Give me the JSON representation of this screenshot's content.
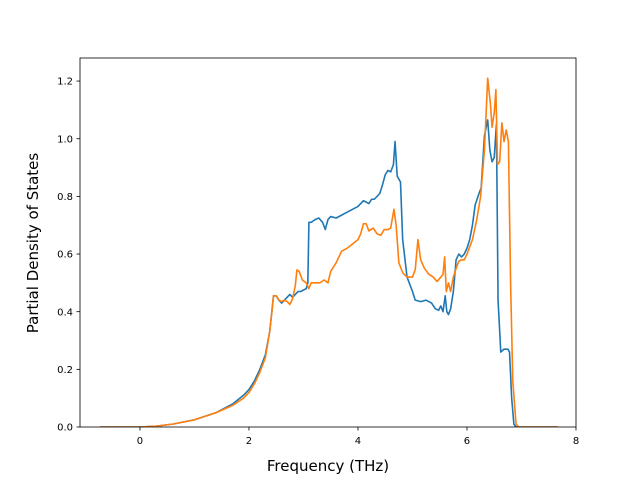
{
  "chart_data": {
    "type": "line",
    "title": "",
    "xlabel": "Frequency (THz)",
    "ylabel": "Partial Density of States",
    "xlim": [
      -1.1,
      8.0
    ],
    "ylim": [
      0.0,
      1.28
    ],
    "xticks": [
      0,
      2,
      4,
      6,
      8
    ],
    "yticks": [
      0.0,
      0.2,
      0.4,
      0.6,
      0.8,
      1.0,
      1.2
    ],
    "xtick_labels": [
      "0",
      "2",
      "4",
      "6",
      "8"
    ],
    "ytick_labels": [
      "0.0",
      "0.2",
      "0.4",
      "0.6",
      "0.8",
      "1.0",
      "1.2"
    ],
    "grid": false,
    "legend": false,
    "series": [
      {
        "color": "#1f77b4",
        "points": [
          [
            -0.72,
            0.0
          ],
          [
            0.0,
            0.0
          ],
          [
            0.3,
            0.003
          ],
          [
            0.6,
            0.01
          ],
          [
            1.0,
            0.025
          ],
          [
            1.4,
            0.05
          ],
          [
            1.7,
            0.08
          ],
          [
            1.9,
            0.11
          ],
          [
            2.0,
            0.13
          ],
          [
            2.1,
            0.16
          ],
          [
            2.2,
            0.2
          ],
          [
            2.3,
            0.25
          ],
          [
            2.38,
            0.33
          ],
          [
            2.42,
            0.4
          ],
          [
            2.45,
            0.455
          ],
          [
            2.5,
            0.455
          ],
          [
            2.55,
            0.44
          ],
          [
            2.6,
            0.43
          ],
          [
            2.65,
            0.44
          ],
          [
            2.7,
            0.45
          ],
          [
            2.75,
            0.46
          ],
          [
            2.8,
            0.45
          ],
          [
            2.85,
            0.46
          ],
          [
            2.9,
            0.47
          ],
          [
            2.95,
            0.47
          ],
          [
            3.0,
            0.475
          ],
          [
            3.05,
            0.48
          ],
          [
            3.08,
            0.5
          ],
          [
            3.1,
            0.71
          ],
          [
            3.14,
            0.71
          ],
          [
            3.18,
            0.715
          ],
          [
            3.22,
            0.72
          ],
          [
            3.28,
            0.725
          ],
          [
            3.35,
            0.71
          ],
          [
            3.4,
            0.685
          ],
          [
            3.45,
            0.72
          ],
          [
            3.5,
            0.73
          ],
          [
            3.6,
            0.725
          ],
          [
            3.7,
            0.735
          ],
          [
            3.8,
            0.745
          ],
          [
            3.9,
            0.755
          ],
          [
            4.0,
            0.765
          ],
          [
            4.1,
            0.785
          ],
          [
            4.15,
            0.78
          ],
          [
            4.2,
            0.775
          ],
          [
            4.25,
            0.79
          ],
          [
            4.3,
            0.79
          ],
          [
            4.35,
            0.8
          ],
          [
            4.4,
            0.81
          ],
          [
            4.45,
            0.84
          ],
          [
            4.5,
            0.875
          ],
          [
            4.55,
            0.89
          ],
          [
            4.6,
            0.885
          ],
          [
            4.65,
            0.91
          ],
          [
            4.68,
            0.99
          ],
          [
            4.72,
            0.87
          ],
          [
            4.78,
            0.85
          ],
          [
            4.82,
            0.65
          ],
          [
            4.9,
            0.52
          ],
          [
            5.0,
            0.47
          ],
          [
            5.05,
            0.44
          ],
          [
            5.15,
            0.435
          ],
          [
            5.25,
            0.44
          ],
          [
            5.35,
            0.43
          ],
          [
            5.42,
            0.41
          ],
          [
            5.48,
            0.405
          ],
          [
            5.52,
            0.42
          ],
          [
            5.56,
            0.4
          ],
          [
            5.6,
            0.455
          ],
          [
            5.63,
            0.4
          ],
          [
            5.66,
            0.39
          ],
          [
            5.7,
            0.41
          ],
          [
            5.75,
            0.47
          ],
          [
            5.8,
            0.58
          ],
          [
            5.85,
            0.6
          ],
          [
            5.9,
            0.59
          ],
          [
            5.95,
            0.6
          ],
          [
            6.0,
            0.62
          ],
          [
            6.05,
            0.65
          ],
          [
            6.1,
            0.7
          ],
          [
            6.15,
            0.77
          ],
          [
            6.22,
            0.81
          ],
          [
            6.26,
            0.83
          ],
          [
            6.32,
            1.01
          ],
          [
            6.38,
            1.065
          ],
          [
            6.42,
            0.96
          ],
          [
            6.46,
            0.92
          ],
          [
            6.5,
            0.935
          ],
          [
            6.54,
            1.05
          ],
          [
            6.57,
            0.44
          ],
          [
            6.62,
            0.26
          ],
          [
            6.68,
            0.27
          ],
          [
            6.75,
            0.27
          ],
          [
            6.78,
            0.26
          ],
          [
            6.82,
            0.1
          ],
          [
            6.86,
            0.01
          ],
          [
            6.9,
            0.0
          ],
          [
            7.65,
            0.0
          ]
        ]
      },
      {
        "color": "#ff7f0e",
        "points": [
          [
            -0.72,
            0.0
          ],
          [
            0.0,
            0.0
          ],
          [
            0.3,
            0.003
          ],
          [
            0.6,
            0.01
          ],
          [
            1.0,
            0.025
          ],
          [
            1.4,
            0.05
          ],
          [
            1.7,
            0.075
          ],
          [
            1.9,
            0.1
          ],
          [
            2.0,
            0.12
          ],
          [
            2.1,
            0.15
          ],
          [
            2.2,
            0.19
          ],
          [
            2.3,
            0.24
          ],
          [
            2.38,
            0.33
          ],
          [
            2.42,
            0.4
          ],
          [
            2.45,
            0.455
          ],
          [
            2.5,
            0.455
          ],
          [
            2.55,
            0.44
          ],
          [
            2.6,
            0.435
          ],
          [
            2.65,
            0.44
          ],
          [
            2.7,
            0.435
          ],
          [
            2.75,
            0.425
          ],
          [
            2.8,
            0.445
          ],
          [
            2.85,
            0.49
          ],
          [
            2.88,
            0.545
          ],
          [
            2.92,
            0.54
          ],
          [
            2.98,
            0.51
          ],
          [
            3.05,
            0.5
          ],
          [
            3.1,
            0.48
          ],
          [
            3.14,
            0.5
          ],
          [
            3.2,
            0.5
          ],
          [
            3.3,
            0.5
          ],
          [
            3.38,
            0.51
          ],
          [
            3.45,
            0.5
          ],
          [
            3.5,
            0.54
          ],
          [
            3.6,
            0.57
          ],
          [
            3.7,
            0.61
          ],
          [
            3.8,
            0.62
          ],
          [
            3.9,
            0.635
          ],
          [
            4.0,
            0.65
          ],
          [
            4.05,
            0.67
          ],
          [
            4.1,
            0.705
          ],
          [
            4.15,
            0.705
          ],
          [
            4.2,
            0.68
          ],
          [
            4.28,
            0.69
          ],
          [
            4.35,
            0.67
          ],
          [
            4.42,
            0.665
          ],
          [
            4.48,
            0.685
          ],
          [
            4.55,
            0.685
          ],
          [
            4.6,
            0.69
          ],
          [
            4.66,
            0.755
          ],
          [
            4.7,
            0.7
          ],
          [
            4.75,
            0.57
          ],
          [
            4.82,
            0.535
          ],
          [
            4.9,
            0.52
          ],
          [
            5.0,
            0.52
          ],
          [
            5.05,
            0.545
          ],
          [
            5.1,
            0.65
          ],
          [
            5.15,
            0.58
          ],
          [
            5.22,
            0.55
          ],
          [
            5.3,
            0.53
          ],
          [
            5.38,
            0.52
          ],
          [
            5.45,
            0.505
          ],
          [
            5.52,
            0.52
          ],
          [
            5.56,
            0.53
          ],
          [
            5.59,
            0.59
          ],
          [
            5.62,
            0.47
          ],
          [
            5.66,
            0.5
          ],
          [
            5.7,
            0.47
          ],
          [
            5.75,
            0.52
          ],
          [
            5.8,
            0.55
          ],
          [
            5.85,
            0.575
          ],
          [
            5.9,
            0.58
          ],
          [
            5.95,
            0.58
          ],
          [
            6.0,
            0.6
          ],
          [
            6.1,
            0.65
          ],
          [
            6.18,
            0.72
          ],
          [
            6.25,
            0.8
          ],
          [
            6.32,
            0.96
          ],
          [
            6.38,
            1.21
          ],
          [
            6.43,
            1.12
          ],
          [
            6.46,
            1.04
          ],
          [
            6.5,
            1.09
          ],
          [
            6.53,
            1.17
          ],
          [
            6.56,
            0.91
          ],
          [
            6.6,
            0.92
          ],
          [
            6.64,
            1.055
          ],
          [
            6.68,
            0.99
          ],
          [
            6.72,
            1.03
          ],
          [
            6.76,
            0.99
          ],
          [
            6.8,
            0.5
          ],
          [
            6.84,
            0.16
          ],
          [
            6.9,
            0.01
          ],
          [
            6.95,
            0.0
          ],
          [
            7.65,
            0.0
          ]
        ]
      }
    ]
  }
}
